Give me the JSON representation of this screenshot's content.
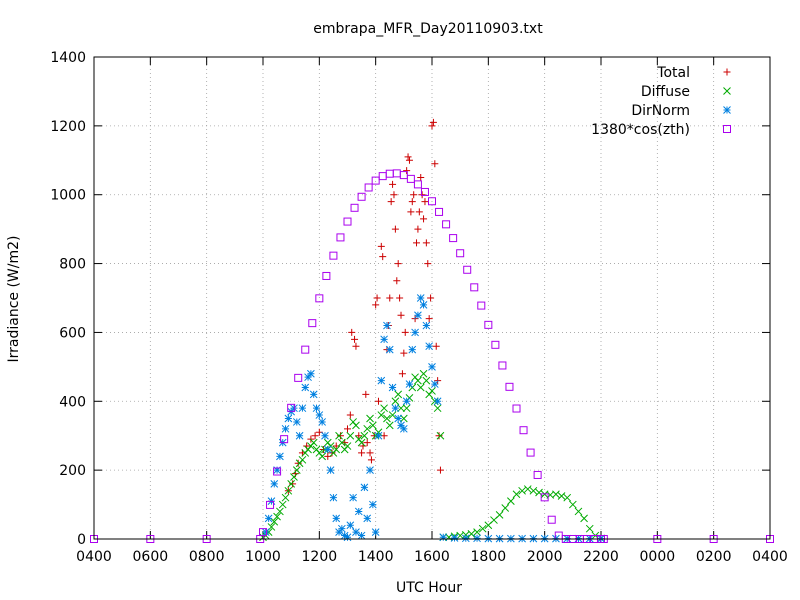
{
  "chart_data": {
    "type": "scatter",
    "title": "embrapa_MFR_Day20110903.txt",
    "xlabel": "UTC Hour",
    "ylabel": "Irradiance (W/m2)",
    "x_ticks": [
      "0400",
      "0600",
      "0800",
      "1000",
      "1200",
      "1400",
      "1600",
      "1800",
      "2000",
      "2200",
      "0000",
      "0200",
      "0400"
    ],
    "xlim": [
      4,
      28
    ],
    "ylim": [
      0,
      1400
    ],
    "y_ticks": [
      0,
      200,
      400,
      600,
      800,
      1000,
      1200,
      1400
    ],
    "grid": true,
    "legend_position": "top-right",
    "series": [
      {
        "name": "Total",
        "marker": "plus",
        "color": "#cc0000",
        "x": [
          10.9,
          11.05,
          11.15,
          11.25,
          11.4,
          11.55,
          11.7,
          11.85,
          12.0,
          12.15,
          12.3,
          12.45,
          12.6,
          12.75,
          12.9,
          13.0,
          13.1,
          13.15,
          13.25,
          13.3,
          13.4,
          13.5,
          13.55,
          13.65,
          13.7,
          13.8,
          13.85,
          13.95,
          14.0,
          14.05,
          14.1,
          14.2,
          14.25,
          14.3,
          14.4,
          14.45,
          14.5,
          14.55,
          14.6,
          14.65,
          14.7,
          14.75,
          14.8,
          14.85,
          14.9,
          14.95,
          15.0,
          15.05,
          15.1,
          15.15,
          15.2,
          15.25,
          15.3,
          15.35,
          15.4,
          15.45,
          15.5,
          15.55,
          15.6,
          15.65,
          15.7,
          15.75,
          15.8,
          15.85,
          15.9,
          15.95,
          16.0,
          16.05,
          16.1,
          16.15,
          16.2,
          16.25,
          16.3
        ],
        "y": [
          140,
          160,
          190,
          220,
          250,
          270,
          290,
          300,
          310,
          260,
          240,
          250,
          270,
          300,
          280,
          320,
          360,
          600,
          580,
          560,
          300,
          250,
          270,
          420,
          280,
          250,
          230,
          300,
          680,
          700,
          400,
          850,
          820,
          300,
          550,
          620,
          700,
          980,
          1030,
          1000,
          900,
          750,
          800,
          700,
          650,
          480,
          540,
          600,
          1070,
          1110,
          1100,
          950,
          980,
          1000,
          640,
          860,
          900,
          950,
          1050,
          1000,
          930,
          980,
          860,
          800,
          640,
          700,
          1200,
          1210,
          1090,
          560,
          460,
          300,
          200
        ]
      },
      {
        "name": "Diffuse",
        "marker": "cross",
        "color": "#00aa00",
        "x": [
          10.0,
          10.1,
          10.2,
          10.3,
          10.4,
          10.5,
          10.6,
          10.7,
          10.8,
          10.9,
          11.0,
          11.1,
          11.2,
          11.3,
          11.4,
          11.5,
          11.6,
          11.7,
          11.8,
          11.9,
          12.0,
          12.1,
          12.2,
          12.3,
          12.4,
          12.5,
          12.6,
          12.7,
          12.8,
          12.9,
          13.0,
          13.1,
          13.2,
          13.3,
          13.4,
          13.5,
          13.6,
          13.7,
          13.8,
          13.9,
          14.0,
          14.1,
          14.2,
          14.3,
          14.4,
          14.5,
          14.6,
          14.7,
          14.8,
          14.9,
          15.0,
          15.1,
          15.2,
          15.3,
          15.4,
          15.5,
          15.6,
          15.7,
          15.8,
          15.9,
          16.0,
          16.1,
          16.2,
          16.3,
          16.4,
          16.6,
          16.8,
          17.0,
          17.2,
          17.4,
          17.6,
          17.8,
          18.0,
          18.2,
          18.4,
          18.6,
          18.8,
          19.0,
          19.2,
          19.4,
          19.6,
          19.8,
          20.0,
          20.2,
          20.4,
          20.6,
          20.8,
          21.0,
          21.2,
          21.4,
          21.6,
          21.8,
          22.0
        ],
        "y": [
          5,
          10,
          20,
          35,
          50,
          65,
          80,
          100,
          120,
          140,
          160,
          180,
          200,
          220,
          230,
          250,
          260,
          270,
          280,
          260,
          250,
          240,
          260,
          280,
          270,
          250,
          260,
          300,
          280,
          260,
          270,
          300,
          340,
          330,
          290,
          280,
          300,
          320,
          350,
          330,
          300,
          310,
          360,
          380,
          350,
          330,
          360,
          400,
          420,
          380,
          350,
          380,
          410,
          440,
          470,
          460,
          440,
          480,
          460,
          420,
          430,
          400,
          380,
          300,
          5,
          5,
          8,
          10,
          12,
          15,
          20,
          30,
          40,
          55,
          70,
          90,
          110,
          130,
          140,
          145,
          140,
          135,
          130,
          128,
          130,
          125,
          120,
          100,
          80,
          60,
          30,
          10,
          2
        ]
      },
      {
        "name": "DirNorm",
        "marker": "star",
        "color": "#0080e0",
        "x": [
          10.1,
          10.2,
          10.3,
          10.4,
          10.5,
          10.6,
          10.7,
          10.8,
          10.9,
          11.0,
          11.1,
          11.2,
          11.3,
          11.4,
          11.5,
          11.6,
          11.7,
          11.8,
          11.9,
          12.0,
          12.1,
          12.2,
          12.3,
          12.4,
          12.5,
          12.6,
          12.7,
          12.8,
          12.9,
          13.0,
          13.1,
          13.2,
          13.3,
          13.4,
          13.5,
          13.6,
          13.7,
          13.8,
          13.9,
          14.0,
          14.1,
          14.2,
          14.3,
          14.4,
          14.5,
          14.6,
          14.7,
          14.8,
          14.9,
          15.0,
          15.1,
          15.2,
          15.3,
          15.4,
          15.5,
          15.6,
          15.7,
          15.8,
          15.9,
          16.0,
          16.1,
          16.2,
          16.4,
          16.8,
          17.2,
          17.6,
          18.0,
          18.4,
          18.8,
          19.2,
          19.6,
          20.0,
          20.4,
          20.8,
          21.2,
          21.6,
          22.0
        ],
        "y": [
          20,
          60,
          110,
          160,
          200,
          240,
          280,
          320,
          350,
          370,
          380,
          340,
          300,
          380,
          440,
          470,
          480,
          420,
          380,
          360,
          340,
          300,
          260,
          200,
          120,
          60,
          20,
          30,
          10,
          5,
          40,
          120,
          20,
          80,
          10,
          150,
          60,
          200,
          100,
          20,
          300,
          460,
          580,
          620,
          550,
          440,
          380,
          350,
          330,
          320,
          400,
          450,
          550,
          600,
          650,
          700,
          680,
          620,
          560,
          500,
          450,
          400,
          5,
          3,
          2,
          2,
          1,
          1,
          1,
          1,
          1,
          1,
          1,
          1,
          1,
          1,
          1
        ]
      },
      {
        "name": "1380*cos(zth)",
        "marker": "square",
        "color": "#aa00ee",
        "x": [
          4,
          6,
          8,
          9.9,
          10.0,
          10.25,
          10.5,
          10.75,
          11.0,
          11.25,
          11.5,
          11.75,
          12.0,
          12.25,
          12.5,
          12.75,
          13.0,
          13.25,
          13.5,
          13.75,
          14.0,
          14.25,
          14.5,
          14.75,
          15.0,
          15.25,
          15.5,
          15.75,
          16.0,
          16.25,
          16.5,
          16.75,
          17.0,
          17.25,
          17.5,
          17.75,
          18.0,
          18.25,
          18.5,
          18.75,
          19.0,
          19.25,
          19.5,
          19.75,
          20.0,
          20.25,
          20.5,
          20.75,
          21.0,
          21.25,
          21.5,
          21.75,
          22.0,
          22.1,
          24,
          26,
          28
        ],
        "y": [
          0,
          0,
          0,
          0,
          20,
          99,
          196,
          290,
          381,
          468,
          550,
          627,
          699,
          764,
          823,
          876,
          922,
          962,
          994,
          1021,
          1041,
          1054,
          1061,
          1062,
          1057,
          1046,
          1030,
          1008,
          981,
          950,
          914,
          874,
          830,
          782,
          731,
          678,
          622,
          564,
          504,
          442,
          379,
          316,
          251,
          186,
          121,
          56,
          10,
          0,
          0,
          0,
          0,
          0,
          0,
          0,
          0,
          0,
          0
        ]
      }
    ]
  }
}
